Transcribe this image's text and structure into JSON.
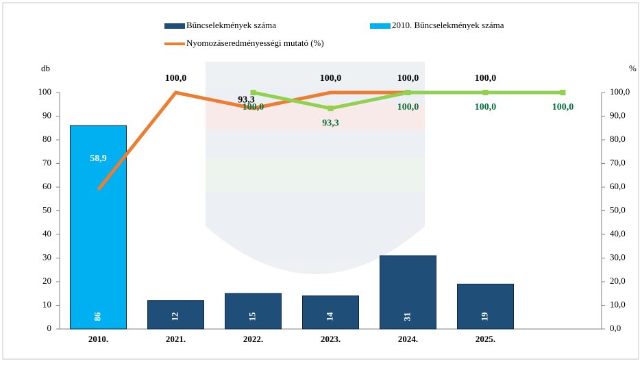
{
  "chart_data": {
    "type": "bar",
    "categories": [
      "2010.",
      "2021.",
      "2022.",
      "2023.",
      "2024.",
      "2025.",
      null
    ],
    "y_label": "db",
    "y2_label": "%",
    "ylim": [
      0,
      100
    ],
    "yticks": [
      0,
      10,
      20,
      30,
      40,
      50,
      60,
      70,
      80,
      90,
      100
    ],
    "y2lim": [
      0,
      100
    ],
    "y2ticks": [
      {
        "value": 0,
        "label": "0,0"
      },
      {
        "value": 10,
        "label": "10,0"
      },
      {
        "value": 20,
        "label": "20,0"
      },
      {
        "value": 30,
        "label": "30,0"
      },
      {
        "value": 40,
        "label": "40,0"
      },
      {
        "value": 50,
        "label": "50,0"
      },
      {
        "value": 60,
        "label": "60,0"
      },
      {
        "value": 70,
        "label": "70,0"
      },
      {
        "value": 80,
        "label": "80,0"
      },
      {
        "value": 90,
        "label": "90,0"
      },
      {
        "value": 100,
        "label": "100,0"
      }
    ],
    "series": [
      {
        "name": "Bűncselekmények száma",
        "type": "bar",
        "color": "#1f4e79",
        "values": [
          null,
          12,
          15,
          14,
          31,
          19,
          null
        ]
      },
      {
        "name": "2010. Bűncselekmények száma",
        "type": "bar",
        "color": "#00b0f0",
        "values": [
          86,
          null,
          null,
          null,
          null,
          null,
          null
        ]
      },
      {
        "name": "Nyomozáseredményességi mutató (%)",
        "type": "line",
        "axis": "y2",
        "color": "#ed7d31",
        "values": [
          58.9,
          100,
          93.3,
          100,
          100,
          100,
          null
        ],
        "value_labels": [
          "58,9",
          "100,0",
          "93,3",
          "100,0",
          "100,0",
          "100,0",
          null
        ]
      },
      {
        "type": "line",
        "axis": "y2",
        "color": "#92d050",
        "values": [
          null,
          null,
          100,
          93.3,
          100,
          100,
          100
        ],
        "value_labels": [
          null,
          null,
          "100,0",
          "93,3",
          "100,0",
          "100,0",
          "100,0"
        ]
      }
    ]
  }
}
